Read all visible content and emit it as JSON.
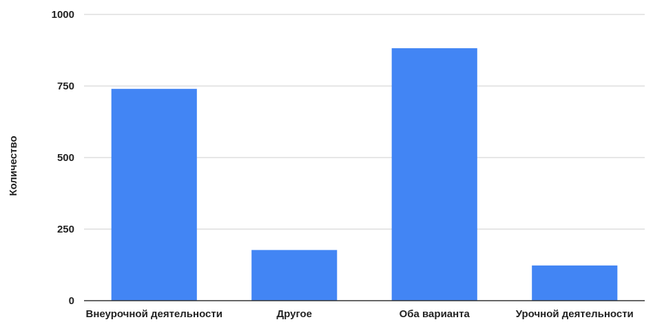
{
  "colors": {
    "bar": "#4285f4",
    "gridline": "#cccccc",
    "baseline": "#333333"
  },
  "chart_data": {
    "type": "bar",
    "categories": [
      "Внеурочной деятельности",
      "Другое",
      "Оба варианта",
      "Урочной деятельности"
    ],
    "values": [
      740,
      177,
      882,
      123
    ],
    "title": "",
    "xlabel": "",
    "ylabel": "Количество",
    "ylim": [
      0,
      1000
    ],
    "yticks": [
      "0",
      "250",
      "500",
      "750",
      "1000"
    ],
    "grid": true,
    "legend": "none"
  }
}
